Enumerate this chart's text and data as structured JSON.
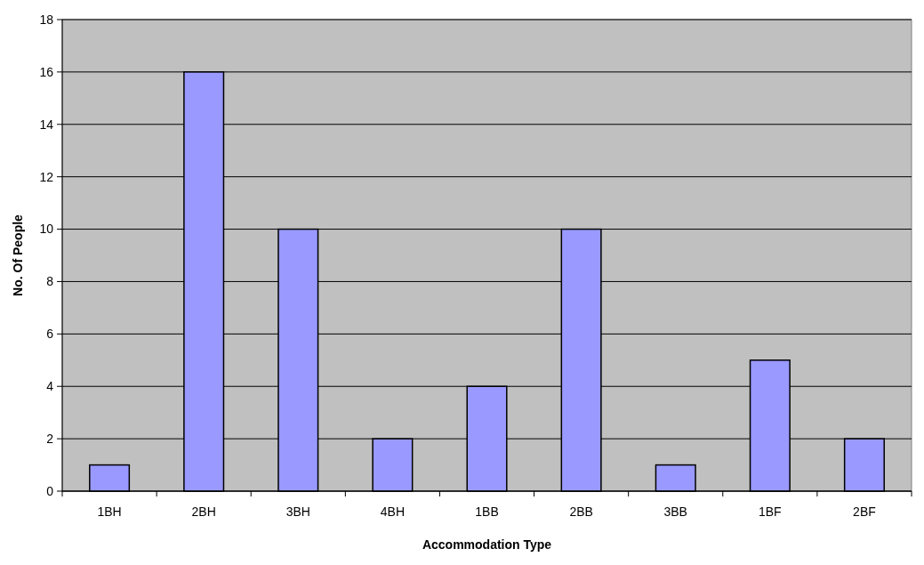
{
  "chart_data": {
    "type": "bar",
    "xlabel": "Accommodation Type",
    "ylabel": "No. Of People",
    "categories": [
      "1BH",
      "2BH",
      "3BH",
      "4BH",
      "1BB",
      "2BB",
      "3BB",
      "1BF",
      "2BF"
    ],
    "values": [
      1,
      16,
      10,
      2,
      4,
      10,
      1,
      5,
      2
    ],
    "color": "#9999ff",
    "ylim": [
      0,
      18
    ],
    "yticks": [
      0,
      2,
      4,
      6,
      8,
      10,
      12,
      14,
      16,
      18
    ],
    "grid": "y"
  }
}
